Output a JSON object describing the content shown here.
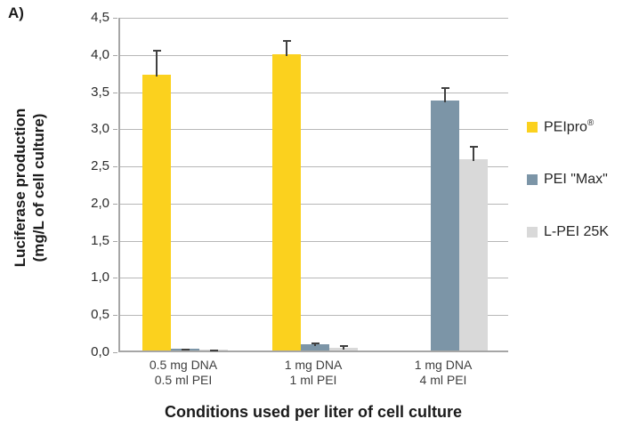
{
  "panel_label": "A)",
  "colors": {
    "peipro": "#fbd11e",
    "pei-max": "#7c95a7",
    "l-pei-25k": "#d9d9d9",
    "gridline": "#b7b7b7",
    "axis": "#a6a6a6",
    "error_bar": "#404040"
  },
  "chart_data": {
    "type": "bar",
    "title": "A)",
    "xlabel": "Conditions used per liter of cell culture",
    "ylabel": "Luciferase production\n(mg/L of cell culture)",
    "ylim": [
      0,
      4.5
    ],
    "ytick_step": 0.5,
    "ytick_labels": [
      "0,0",
      "0,5",
      "1,0",
      "1,5",
      "2,0",
      "2,5",
      "3,0",
      "3,5",
      "4,0",
      "4,5"
    ],
    "decimal_style": "comma",
    "grid": true,
    "legend_position": "right",
    "categories": [
      "0.5 mg DNA\n0.5 ml PEI",
      "1 mg DNA\n1 ml PEI",
      "1 mg DNA\n4 ml PEI"
    ],
    "series": [
      {
        "name": "PEIpro®",
        "key": "peipro",
        "values": [
          3.71,
          3.99,
          null
        ],
        "errors": [
          0.35,
          0.2,
          null
        ]
      },
      {
        "name": "PEI \"Max\"",
        "key": "pei-max",
        "values": [
          0.02,
          0.08,
          3.36
        ],
        "errors": [
          0.02,
          0.04,
          0.2
        ]
      },
      {
        "name": "L-PEI 25K",
        "key": "l-pei-25k",
        "values": [
          0.015,
          0.04,
          2.57
        ],
        "errors": [
          0.01,
          0.04,
          0.2
        ]
      }
    ]
  }
}
